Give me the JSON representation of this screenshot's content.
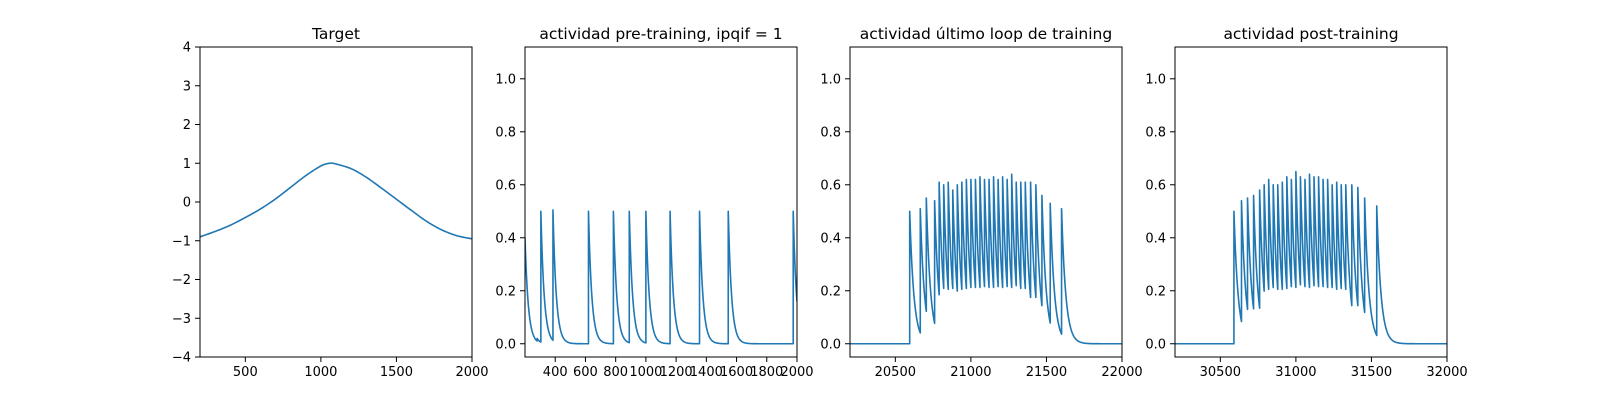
{
  "colors": {
    "series": "#1f77b4",
    "axis": "#000000",
    "background": "#ffffff"
  },
  "chart_data": [
    {
      "type": "line",
      "title": "Target",
      "xlabel": "",
      "ylabel": "",
      "xlim": [
        200,
        2000
      ],
      "ylim": [
        -4,
        4
      ],
      "xticks": [
        500,
        1000,
        1500,
        2000
      ],
      "xtick_labels": [
        "500",
        "1000",
        "1500",
        "2000"
      ],
      "yticks": [
        -4,
        -3,
        -2,
        -1,
        0,
        1,
        2,
        3,
        4
      ],
      "ytick_labels": [
        "−4",
        "−3",
        "−2",
        "−1",
        "0",
        "1",
        "2",
        "3",
        "4"
      ],
      "grid": false,
      "series": [
        {
          "name": "target",
          "x": [
            200,
            300,
            400,
            500,
            600,
            700,
            800,
            900,
            1000,
            1060,
            1100,
            1200,
            1300,
            1400,
            1500,
            1600,
            1700,
            1800,
            1900,
            2000
          ],
          "y": [
            -0.9,
            -0.76,
            -0.6,
            -0.4,
            -0.18,
            0.08,
            0.38,
            0.68,
            0.93,
            1.0,
            0.98,
            0.86,
            0.64,
            0.36,
            0.07,
            -0.22,
            -0.5,
            -0.72,
            -0.87,
            -0.95
          ]
        }
      ]
    },
    {
      "type": "line",
      "title": "actividad pre-training, ipqif = 1",
      "xlabel": "",
      "ylabel": "",
      "xlim": [
        200,
        2000
      ],
      "ylim": [
        -0.05,
        1.12
      ],
      "xticks": [
        400,
        600,
        800,
        1000,
        1200,
        1400,
        1600,
        1800,
        2000
      ],
      "xtick_labels": [
        "400",
        "600",
        "800",
        "1000",
        "1200",
        "1400",
        "1600",
        "1800",
        "2000"
      ],
      "yticks": [
        0.0,
        0.2,
        0.4,
        0.6,
        0.8,
        1.0
      ],
      "ytick_labels": [
        "0.0",
        "0.2",
        "0.4",
        "0.6",
        "0.8",
        "1.0"
      ],
      "grid": false,
      "initial_value": 0.4,
      "spike_times": [
        280,
        305,
        385,
        620,
        785,
        890,
        1000,
        1160,
        1355,
        1545,
        1975
      ],
      "spike_peaks": [
        0.02,
        0.5,
        0.505,
        0.5,
        0.5,
        0.5,
        0.5,
        0.5,
        0.5,
        0.5,
        0.5
      ],
      "decay_tau": 22,
      "series": [
        {
          "name": "actividad"
        }
      ]
    },
    {
      "type": "line",
      "title": "actividad último loop de training",
      "xlabel": "",
      "ylabel": "",
      "xlim": [
        20200,
        22000
      ],
      "ylim": [
        -0.05,
        1.12
      ],
      "xticks": [
        20500,
        21000,
        21500,
        22000
      ],
      "xtick_labels": [
        "20500",
        "21000",
        "21500",
        "22000"
      ],
      "yticks": [
        0.0,
        0.2,
        0.4,
        0.6,
        0.8,
        1.0
      ],
      "ytick_labels": [
        "0.0",
        "0.2",
        "0.4",
        "0.6",
        "0.8",
        "1.0"
      ],
      "grid": false,
      "initial_value": 0,
      "spike_times": [
        20595,
        20665,
        20705,
        20760,
        20790,
        20820,
        20850,
        20880,
        20910,
        20940,
        20970,
        21000,
        21030,
        21060,
        21090,
        21120,
        21150,
        21180,
        21210,
        21240,
        21270,
        21300,
        21330,
        21360,
        21395,
        21430,
        21470,
        21525,
        21600
      ],
      "spike_peaks": [
        0.5,
        0.51,
        0.55,
        0.54,
        0.61,
        0.6,
        0.61,
        0.58,
        0.6,
        0.61,
        0.62,
        0.62,
        0.62,
        0.63,
        0.62,
        0.62,
        0.63,
        0.62,
        0.63,
        0.62,
        0.64,
        0.61,
        0.61,
        0.61,
        0.61,
        0.6,
        0.56,
        0.53,
        0.51
      ],
      "decay_tau": 28,
      "series": [
        {
          "name": "actividad"
        }
      ]
    },
    {
      "type": "line",
      "title": "actividad post-training",
      "xlabel": "",
      "ylabel": "",
      "xlim": [
        30200,
        32000
      ],
      "ylim": [
        -0.05,
        1.12
      ],
      "xticks": [
        30500,
        31000,
        31500,
        32000
      ],
      "xtick_labels": [
        "30500",
        "31000",
        "31500",
        "32000"
      ],
      "yticks": [
        0.0,
        0.2,
        0.4,
        0.6,
        0.8,
        1.0
      ],
      "ytick_labels": [
        "0.0",
        "0.2",
        "0.4",
        "0.6",
        "0.8",
        "1.0"
      ],
      "grid": false,
      "initial_value": 0,
      "spike_times": [
        30590,
        30640,
        30680,
        30720,
        30760,
        30790,
        30820,
        30850,
        30880,
        30910,
        30940,
        30970,
        31000,
        31030,
        31060,
        31090,
        31120,
        31150,
        31180,
        31210,
        31240,
        31270,
        31300,
        31330,
        31370,
        31410,
        31455,
        31535
      ],
      "spike_peaks": [
        0.5,
        0.54,
        0.55,
        0.56,
        0.58,
        0.6,
        0.62,
        0.6,
        0.6,
        0.61,
        0.63,
        0.62,
        0.65,
        0.63,
        0.62,
        0.64,
        0.63,
        0.63,
        0.62,
        0.62,
        0.6,
        0.61,
        0.6,
        0.6,
        0.6,
        0.59,
        0.55,
        0.52
      ],
      "decay_tau": 28,
      "series": [
        {
          "name": "actividad"
        }
      ]
    }
  ]
}
